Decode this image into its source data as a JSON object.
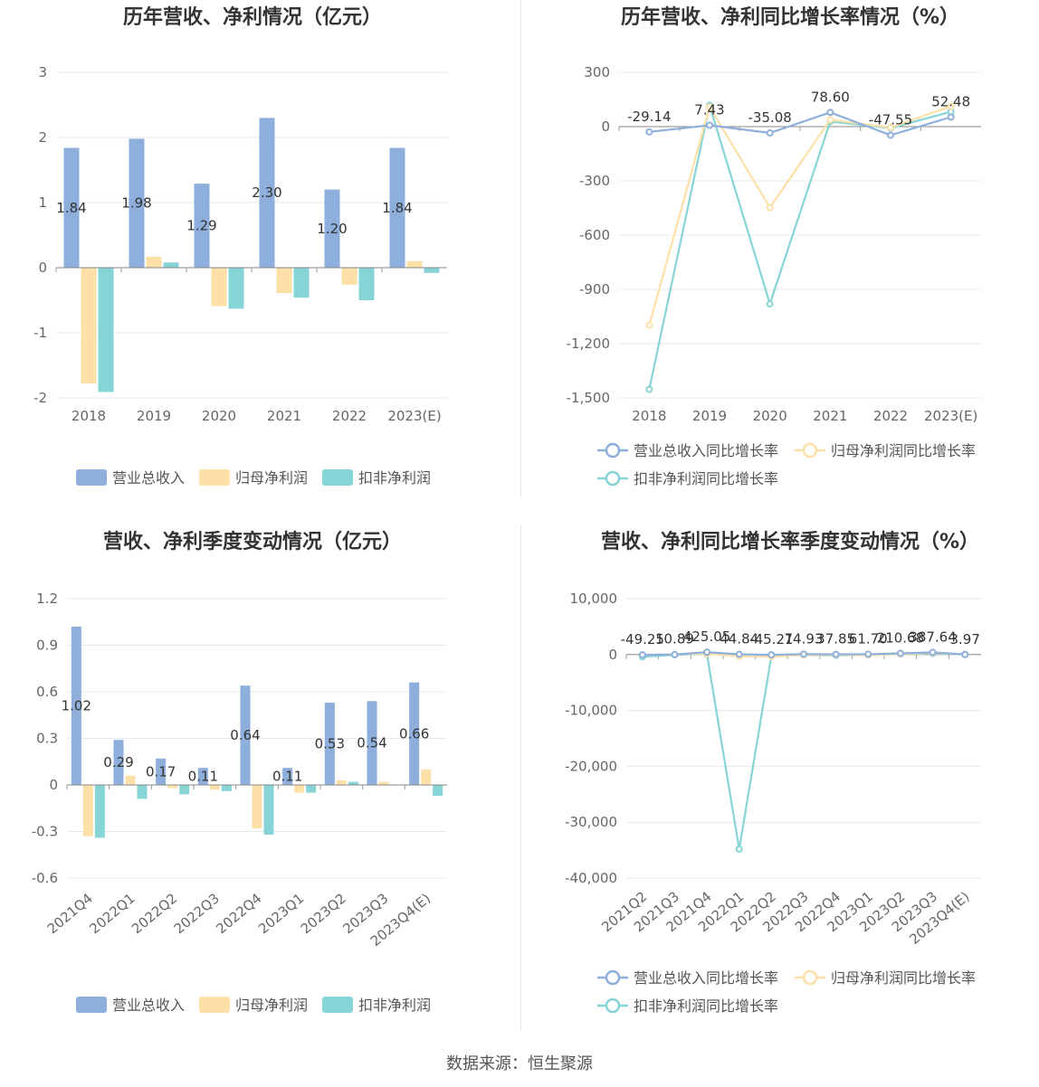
{
  "colors": {
    "revenue": "#8eaedb",
    "parent_profit": "#fde0a8",
    "deducted_profit": "#86d4d6",
    "axis": "#666666",
    "grid": "#e6e9f0",
    "title": "#333333"
  },
  "legend_labels": [
    "营业总收入",
    "归母净利润",
    "扣非净利润"
  ],
  "legend_labels_growth": [
    "营业总收入同比增长率",
    "归母净利润同比增长率",
    "扣非净利润同比增长率"
  ],
  "footer": "数据来源：恒生聚源",
  "chart_data": [
    {
      "type": "bar",
      "title": "历年营收、净利情况（亿元）",
      "categories": [
        "2018",
        "2019",
        "2020",
        "2021",
        "2022",
        "2023(E)"
      ],
      "ylim": [
        -2,
        3
      ],
      "yticks": [
        "-2",
        "-1",
        "0",
        "1",
        "2",
        "3"
      ],
      "ytick_values": [
        -2,
        -1,
        0,
        1,
        2,
        3
      ],
      "series": [
        {
          "name": "营业总收入",
          "values": [
            1.84,
            1.98,
            1.29,
            2.3,
            1.2,
            1.84
          ]
        },
        {
          "name": "归母净利润",
          "values": [
            -1.78,
            0.17,
            -0.59,
            -0.39,
            -0.26,
            0.1
          ]
        },
        {
          "name": "扣非净利润",
          "values": [
            -1.91,
            0.08,
            -0.63,
            -0.46,
            -0.5,
            -0.08
          ]
        }
      ],
      "data_labels": [
        "1.84",
        "1.98",
        "1.29",
        "2.30",
        "1.20",
        "1.84"
      ],
      "legend": "bottom"
    },
    {
      "type": "line",
      "title": "历年营收、净利同比增长率情况（%）",
      "categories": [
        "2018",
        "2019",
        "2020",
        "2021",
        "2022",
        "2023(E)"
      ],
      "ylim": [
        -1500,
        300
      ],
      "yticks": [
        "-1,500",
        "-1,200",
        "-900",
        "-600",
        "-300",
        "0",
        "300"
      ],
      "ytick_values": [
        -1500,
        -1200,
        -900,
        -600,
        -300,
        0,
        300
      ],
      "series": [
        {
          "name": "营业总收入同比增长率",
          "values": [
            -29.14,
            7.43,
            -35.08,
            78.6,
            -47.55,
            52.48
          ]
        },
        {
          "name": "归母净利润同比增长率",
          "values": [
            -1098,
            109,
            -448,
            38,
            -5,
            112
          ]
        },
        {
          "name": "扣非净利润同比增长率",
          "values": [
            -1453,
            118,
            -980,
            28,
            -8,
            82
          ]
        }
      ],
      "data_labels": [
        "-29.14",
        "7.43",
        "-35.08",
        "78.60",
        "-47.55",
        "52.48"
      ],
      "legend": "bottom"
    },
    {
      "type": "bar",
      "title": "营收、净利季度变动情况（亿元）",
      "categories": [
        "2021Q4",
        "2022Q1",
        "2022Q2",
        "2022Q3",
        "2022Q4",
        "2023Q1",
        "2023Q2",
        "2023Q3",
        "2023Q4(E)"
      ],
      "ylim": [
        -0.6,
        1.2
      ],
      "yticks": [
        "-0.6",
        "-0.3",
        "0",
        "0.3",
        "0.6",
        "0.9",
        "1.2"
      ],
      "ytick_values": [
        -0.6,
        -0.3,
        0,
        0.3,
        0.6,
        0.9,
        1.2
      ],
      "series": [
        {
          "name": "营业总收入",
          "values": [
            1.02,
            0.29,
            0.17,
            0.11,
            0.64,
            0.11,
            0.53,
            0.54,
            0.66
          ]
        },
        {
          "name": "归母净利润",
          "values": [
            -0.33,
            0.06,
            -0.02,
            -0.03,
            -0.28,
            -0.05,
            0.03,
            0.02,
            0.1
          ]
        },
        {
          "name": "扣非净利润",
          "values": [
            -0.34,
            -0.09,
            -0.06,
            -0.04,
            -0.32,
            -0.05,
            0.02,
            0.0,
            -0.07
          ]
        }
      ],
      "data_labels": [
        "1.02",
        "0.29",
        "0.17",
        "0.11",
        "0.64",
        "0.11",
        "0.53",
        "0.54",
        "0.66"
      ],
      "legend": "bottom"
    },
    {
      "type": "line",
      "title": "营收、净利同比增长率季度变动情况（%）",
      "categories": [
        "2021Q2",
        "2021Q3",
        "2021Q4",
        "2022Q1",
        "2022Q2",
        "2022Q3",
        "2022Q4",
        "2023Q1",
        "2023Q2",
        "2023Q3",
        "2023Q4(E)"
      ],
      "ylim": [
        -40000,
        10000
      ],
      "yticks": [
        "-40,000",
        "-30,000",
        "-20,000",
        "-10,000",
        "0",
        "10,000"
      ],
      "ytick_values": [
        -40000,
        -30000,
        -20000,
        -10000,
        0,
        10000
      ],
      "series": [
        {
          "name": "营业总收入同比增长率",
          "values": [
            -49.25,
            10.89,
            425.05,
            44.84,
            -45.21,
            74.93,
            37.85,
            61.7,
            210.68,
            387.64,
            3.97
          ]
        },
        {
          "name": "归母净利润同比增长率",
          "values": [
            -50,
            20,
            150,
            -300,
            -350,
            -100,
            -50,
            -120,
            100,
            300,
            20
          ]
        },
        {
          "name": "扣非净利润同比增长率",
          "values": [
            -400,
            -50,
            100,
            -34800,
            -200,
            -100,
            -150,
            -100,
            80,
            200,
            50
          ]
        }
      ],
      "data_labels": [
        "-49.25",
        "10.89",
        "425.05",
        "44.84",
        "-45.21",
        "74.93",
        "37.85",
        "61.70",
        "210.68",
        "387.64",
        "3.97"
      ],
      "legend": "bottom"
    }
  ]
}
